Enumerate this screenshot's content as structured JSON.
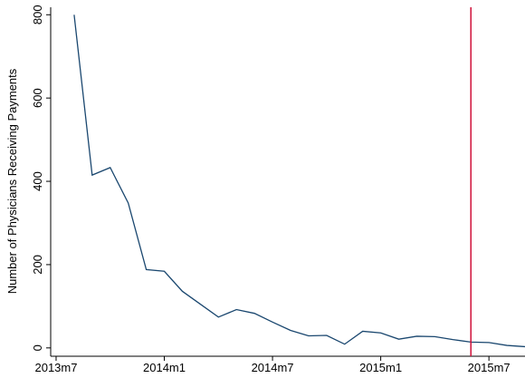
{
  "chart_data": {
    "type": "line",
    "y_label": "Number of Physicians Receiving Payments",
    "x": [
      643,
      644,
      645,
      646,
      647,
      648,
      649,
      650,
      651,
      652,
      653,
      654,
      655,
      656,
      657,
      658,
      659,
      660,
      661,
      662,
      663,
      664,
      665,
      666,
      667,
      668
    ],
    "series": [
      {
        "color": "#1a476f",
        "values": [
          800,
          415,
          433,
          348,
          188,
          184,
          136,
          105,
          74,
          92,
          83,
          62,
          42,
          29,
          30,
          9,
          40,
          36,
          21,
          28,
          27,
          20,
          14,
          13,
          6,
          3
        ]
      }
    ],
    "xlim": [
      641.7,
      668
    ],
    "xticks": [
      {
        "value": 642,
        "label": "2013m7"
      },
      {
        "value": 648,
        "label": "2014m1"
      },
      {
        "value": 654,
        "label": "2014m7"
      },
      {
        "value": 660,
        "label": "2015m1"
      },
      {
        "value": 666,
        "label": "2015m7"
      }
    ],
    "ylim": [
      -20,
      818
    ],
    "yticks": [
      0,
      200,
      400,
      600,
      800
    ],
    "vline": 665,
    "vline_color": "#d0103a"
  }
}
